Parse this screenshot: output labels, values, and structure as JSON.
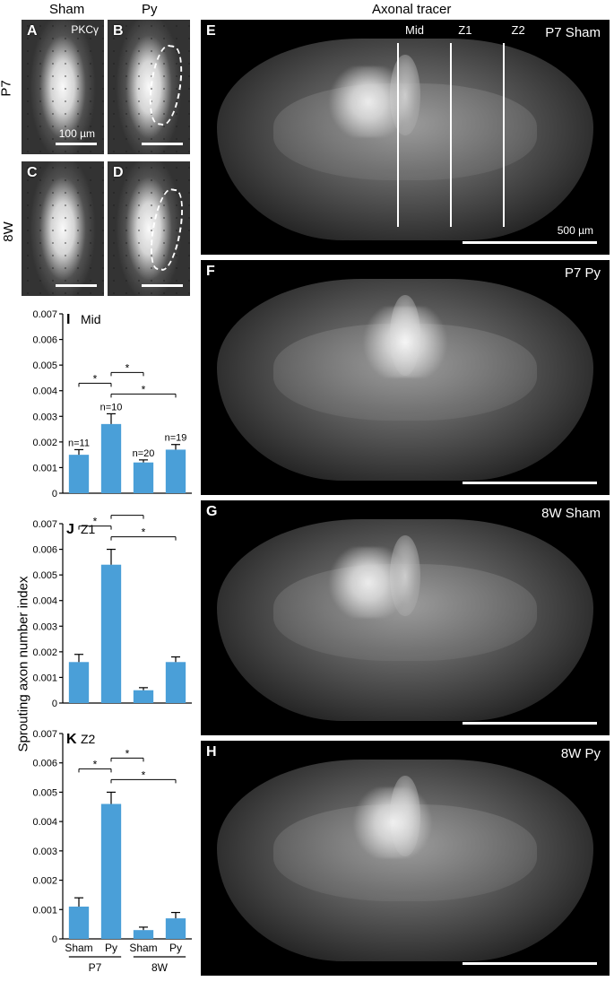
{
  "headers": {
    "sham": "Sham",
    "py": "Py",
    "axonal": "Axonal tracer",
    "pkc": "PKCγ"
  },
  "row_labels": {
    "p7": "P7",
    "w8": "8W"
  },
  "panels": {
    "A": "A",
    "B": "B",
    "C": "C",
    "D": "D",
    "E": "E",
    "F": "F",
    "G": "G",
    "H": "H",
    "I": "I",
    "J": "J",
    "K": "K"
  },
  "brain_labels": {
    "E": "P7 Sham",
    "F": "P7 Py",
    "G": "8W Sham",
    "H": "8W Py"
  },
  "zones": {
    "mid": "Mid",
    "z1": "Z1",
    "z2": "Z2"
  },
  "scalebars": {
    "small": "100 µm",
    "large": "500 µm"
  },
  "y_axis_label": "Sprouting axon number index",
  "y_max": 0.007,
  "y_ticks": [
    "0",
    "0.001",
    "0.002",
    "0.003",
    "0.004",
    "0.005",
    "0.006",
    "0.007"
  ],
  "x_labels": [
    "Sham",
    "Py",
    "Sham",
    "Py"
  ],
  "x_groups": [
    "P7",
    "8W"
  ],
  "chart_I": {
    "sub": "Mid",
    "values": [
      0.0015,
      0.0027,
      0.0012,
      0.0017
    ],
    "errs": [
      0.0002,
      0.0004,
      0.0001,
      0.0002
    ],
    "n": [
      "n=11",
      "n=10",
      "n=20",
      "n=19"
    ],
    "sig": [
      [
        0,
        1
      ],
      [
        1,
        2
      ],
      [
        1,
        3
      ]
    ]
  },
  "chart_J": {
    "sub": "Z1",
    "values": [
      0.0016,
      0.0054,
      0.0005,
      0.0016
    ],
    "errs": [
      0.0003,
      0.0006,
      0.0001,
      0.0002
    ],
    "sig": [
      [
        0,
        1
      ],
      [
        1,
        2
      ],
      [
        1,
        3
      ],
      [
        2,
        3
      ]
    ]
  },
  "chart_K": {
    "sub": "Z2",
    "values": [
      0.0011,
      0.0046,
      0.0003,
      0.0007
    ],
    "errs": [
      0.0003,
      0.0004,
      0.0001,
      0.0002
    ],
    "sig": [
      [
        0,
        1
      ],
      [
        1,
        2
      ],
      [
        1,
        3
      ]
    ]
  },
  "colors": {
    "bar": "#4a9fd8",
    "bg": "#ffffff"
  }
}
